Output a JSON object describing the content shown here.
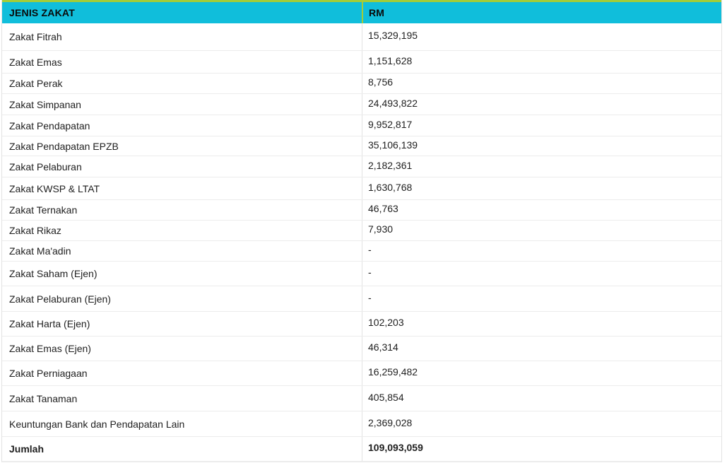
{
  "table": {
    "columns": [
      {
        "label": "JENIS ZAKAT"
      },
      {
        "label": "RM"
      }
    ],
    "rows": [
      {
        "jenis": "Zakat Fitrah",
        "rm": "15,329,195"
      },
      {
        "jenis": "Zakat Emas",
        "rm": "1,151,628"
      },
      {
        "jenis": "Zakat Perak",
        "rm": "8,756"
      },
      {
        "jenis": "Zakat Simpanan",
        "rm": "24,493,822"
      },
      {
        "jenis": "Zakat Pendapatan",
        "rm": "9,952,817"
      },
      {
        "jenis": "Zakat Pendapatan EPZB",
        "rm": "35,106,139"
      },
      {
        "jenis": "Zakat Pelaburan",
        "rm": "2,182,361"
      },
      {
        "jenis": "Zakat KWSP & LTAT",
        "rm": "1,630,768"
      },
      {
        "jenis": "Zakat Ternakan",
        "rm": "46,763"
      },
      {
        "jenis": "Zakat Rikaz",
        "rm": "7,930"
      },
      {
        "jenis": "Zakat Ma'adin",
        "rm": "-"
      },
      {
        "jenis": "Zakat Saham (Ejen)",
        "rm": "-"
      },
      {
        "jenis": "Zakat Pelaburan (Ejen)",
        "rm": "-"
      },
      {
        "jenis": "Zakat Harta (Ejen)",
        "rm": "102,203"
      },
      {
        "jenis": "Zakat Emas (Ejen)",
        "rm": "46,314"
      },
      {
        "jenis": "Zakat Perniagaan",
        "rm": "16,259,482"
      },
      {
        "jenis": "Zakat Tanaman",
        "rm": "405,854"
      },
      {
        "jenis": "Keuntungan Bank dan Pendapatan Lain",
        "rm": "2,369,028"
      },
      {
        "jenis": "Jumlah",
        "rm": "109,093,059",
        "bold": true
      }
    ],
    "colors": {
      "header_bg": "#10BEDB",
      "header_border": "#A3CC39",
      "grid_line": "#ECECEC",
      "outer_border": "#E3E3E3",
      "header_text": "#0A0A0A",
      "body_text": "#1F1F1F"
    }
  }
}
